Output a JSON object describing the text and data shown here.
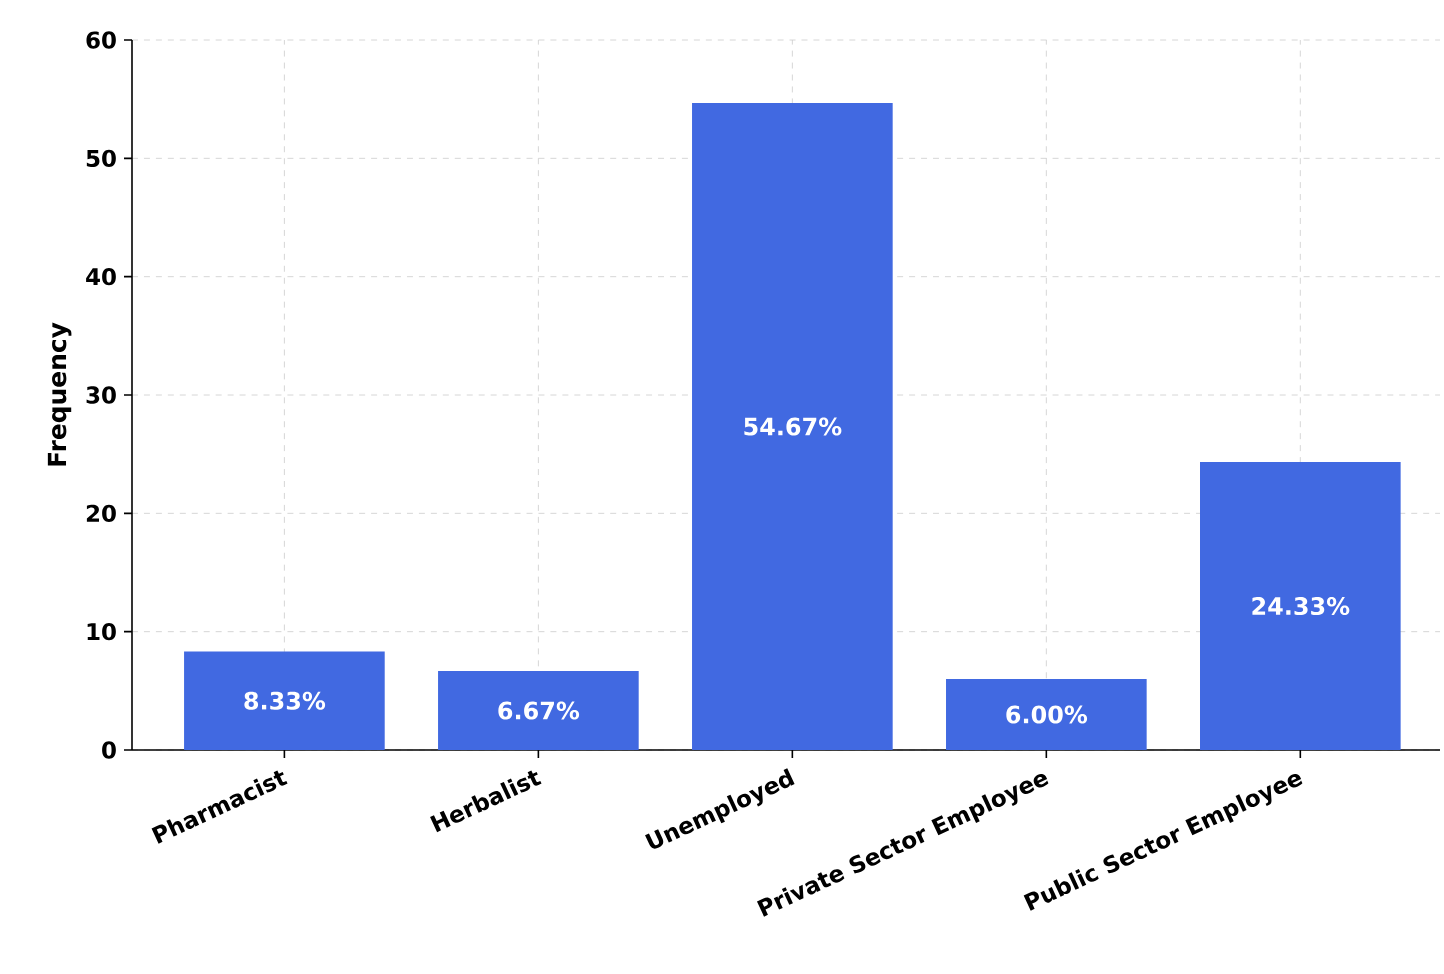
{
  "chart_data": {
    "type": "bar",
    "ylabel": "Frequency",
    "categories": [
      "Pharmacist",
      "Herbalist",
      "Unemployed",
      "Private Sector Employee",
      "Public Sector Employee"
    ],
    "values": [
      8.33,
      6.67,
      54.67,
      6.0,
      24.33
    ],
    "value_labels": [
      "8.33%",
      "6.67%",
      "54.67%",
      "6.00%",
      "24.33%"
    ],
    "color": "#4169e1",
    "ylim": [
      0,
      60
    ],
    "yticks": [
      0,
      10,
      20,
      30,
      40,
      50,
      60
    ],
    "grid": true
  }
}
